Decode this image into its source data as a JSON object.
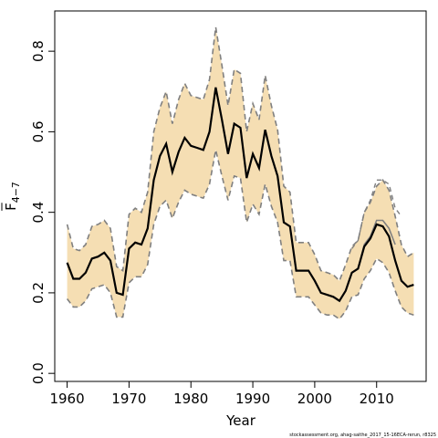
{
  "chart_data": {
    "type": "line",
    "xlabel": "Year",
    "ylabel_main": "F",
    "ylabel_sub": "4−7",
    "xlim": [
      1958,
      2018
    ],
    "ylim": [
      -0.02,
      0.9
    ],
    "x_ticks": [
      1960,
      1970,
      1980,
      1990,
      2000,
      2010
    ],
    "y_ticks": [
      0.0,
      0.2,
      0.4,
      0.6,
      0.8
    ],
    "grid": false,
    "colors": {
      "band": "#f5deb3",
      "estimate": "#000000",
      "bounds": "#808080",
      "retro": "#808080"
    },
    "series": [
      {
        "role": "estimate",
        "x": [
          1960,
          1961,
          1962,
          1963,
          1964,
          1965,
          1966,
          1967,
          1968,
          1969,
          1970,
          1971,
          1972,
          1973,
          1974,
          1975,
          1976,
          1977,
          1978,
          1979,
          1980,
          1981,
          1982,
          1983,
          1984,
          1985,
          1986,
          1987,
          1988,
          1989,
          1990,
          1991,
          1992,
          1993,
          1994,
          1995,
          1996,
          1997,
          1998,
          1999,
          2000,
          2001,
          2002,
          2003,
          2004,
          2005,
          2006,
          2007,
          2008,
          2009,
          2010,
          2011,
          2012,
          2013,
          2014,
          2015,
          2016
        ],
        "values": [
          0.275,
          0.235,
          0.235,
          0.25,
          0.285,
          0.29,
          0.3,
          0.28,
          0.2,
          0.195,
          0.31,
          0.325,
          0.32,
          0.36,
          0.48,
          0.54,
          0.57,
          0.5,
          0.55,
          0.585,
          0.565,
          0.56,
          0.555,
          0.6,
          0.71,
          0.63,
          0.545,
          0.62,
          0.61,
          0.485,
          0.545,
          0.51,
          0.605,
          0.54,
          0.49,
          0.375,
          0.365,
          0.255,
          0.255,
          0.255,
          0.23,
          0.2,
          0.195,
          0.19,
          0.18,
          0.205,
          0.25,
          0.26,
          0.315,
          0.335,
          0.37,
          0.365,
          0.34,
          0.28,
          0.23,
          0.215,
          0.22
        ]
      },
      {
        "role": "lower",
        "x": [
          1960,
          1961,
          1962,
          1963,
          1964,
          1965,
          1966,
          1967,
          1968,
          1969,
          1970,
          1971,
          1972,
          1973,
          1974,
          1975,
          1976,
          1977,
          1978,
          1979,
          1980,
          1981,
          1982,
          1983,
          1984,
          1985,
          1986,
          1987,
          1988,
          1989,
          1990,
          1991,
          1992,
          1993,
          1994,
          1995,
          1996,
          1997,
          1998,
          1999,
          2000,
          2001,
          2002,
          2003,
          2004,
          2005,
          2006,
          2007,
          2008,
          2009,
          2010,
          2011,
          2012,
          2013,
          2014,
          2015,
          2016
        ],
        "values": [
          0.185,
          0.165,
          0.165,
          0.18,
          0.21,
          0.215,
          0.22,
          0.2,
          0.14,
          0.14,
          0.225,
          0.24,
          0.24,
          0.27,
          0.37,
          0.415,
          0.43,
          0.385,
          0.425,
          0.455,
          0.445,
          0.44,
          0.435,
          0.47,
          0.555,
          0.49,
          0.43,
          0.49,
          0.485,
          0.375,
          0.42,
          0.395,
          0.47,
          0.415,
          0.375,
          0.28,
          0.28,
          0.19,
          0.19,
          0.19,
          0.17,
          0.15,
          0.145,
          0.145,
          0.135,
          0.155,
          0.19,
          0.195,
          0.235,
          0.255,
          0.285,
          0.275,
          0.25,
          0.205,
          0.165,
          0.15,
          0.145
        ]
      },
      {
        "role": "upper",
        "x": [
          1960,
          1961,
          1962,
          1963,
          1964,
          1965,
          1966,
          1967,
          1968,
          1969,
          1970,
          1971,
          1972,
          1973,
          1974,
          1975,
          1976,
          1977,
          1978,
          1979,
          1980,
          1981,
          1982,
          1983,
          1984,
          1985,
          1986,
          1987,
          1988,
          1989,
          1990,
          1991,
          1992,
          1993,
          1994,
          1995,
          1996,
          1997,
          1998,
          1999,
          2000,
          2001,
          2002,
          2003,
          2004,
          2005,
          2006,
          2007,
          2008,
          2009,
          2010,
          2011,
          2012,
          2013,
          2014,
          2015,
          2016
        ],
        "values": [
          0.37,
          0.31,
          0.305,
          0.32,
          0.365,
          0.37,
          0.38,
          0.36,
          0.265,
          0.255,
          0.395,
          0.41,
          0.4,
          0.45,
          0.6,
          0.66,
          0.7,
          0.62,
          0.68,
          0.72,
          0.69,
          0.685,
          0.68,
          0.73,
          0.86,
          0.765,
          0.665,
          0.755,
          0.745,
          0.6,
          0.67,
          0.63,
          0.74,
          0.665,
          0.605,
          0.465,
          0.45,
          0.325,
          0.325,
          0.325,
          0.295,
          0.255,
          0.25,
          0.245,
          0.23,
          0.27,
          0.315,
          0.33,
          0.4,
          0.425,
          0.465,
          0.48,
          0.455,
          0.39,
          0.32,
          0.29,
          0.3
        ]
      },
      {
        "role": "retrospective",
        "x": [
          2006,
          2007,
          2008,
          2009,
          2010,
          2011,
          2012,
          2013
        ],
        "values": [
          0.25,
          0.26,
          0.32,
          0.34,
          0.38,
          0.38,
          0.36,
          0.32
        ]
      },
      {
        "role": "retrospective-upper",
        "x": [
          2006,
          2007,
          2008,
          2009,
          2010,
          2011,
          2012,
          2013,
          2014
        ],
        "values": [
          0.31,
          0.33,
          0.4,
          0.43,
          0.48,
          0.48,
          0.47,
          0.41,
          0.39
        ]
      }
    ]
  },
  "footer_text": "stockassessment.org, ahag-saithe_2017_15-16ECA-rerun, r8325"
}
